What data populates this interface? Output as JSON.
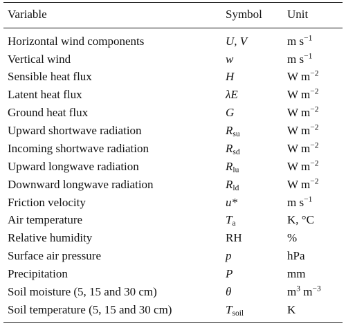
{
  "table": {
    "headers": {
      "variable": "Variable",
      "symbol": "Symbol",
      "unit": "Unit"
    },
    "rows": [
      {
        "variable": "Horizontal wind components",
        "symbol": {
          "main": "U, V",
          "sub": ""
        },
        "unit": {
          "base": "m s",
          "sup": "−1",
          "rest": ""
        }
      },
      {
        "variable": "Vertical wind",
        "symbol": {
          "main": "w",
          "sub": ""
        },
        "unit": {
          "base": "m s",
          "sup": "−1",
          "rest": ""
        }
      },
      {
        "variable": "Sensible heat flux",
        "symbol": {
          "main": "H",
          "sub": ""
        },
        "unit": {
          "base": "W m",
          "sup": "−2",
          "rest": ""
        }
      },
      {
        "variable": "Latent heat flux",
        "symbol": {
          "main": "λE",
          "sub": ""
        },
        "unit": {
          "base": "W m",
          "sup": "−2",
          "rest": ""
        }
      },
      {
        "variable": "Ground heat flux",
        "symbol": {
          "main": "G",
          "sub": ""
        },
        "unit": {
          "base": "W m",
          "sup": "−2",
          "rest": ""
        }
      },
      {
        "variable": "Upward shortwave radiation",
        "symbol": {
          "main": "R",
          "sub": "su"
        },
        "unit": {
          "base": "W m",
          "sup": "−2",
          "rest": ""
        }
      },
      {
        "variable": "Incoming shortwave radiation",
        "symbol": {
          "main": "R",
          "sub": "sd"
        },
        "unit": {
          "base": "W m",
          "sup": "−2",
          "rest": ""
        }
      },
      {
        "variable": "Upward longwave radiation",
        "symbol": {
          "main": "R",
          "sub": "lu"
        },
        "unit": {
          "base": "W m",
          "sup": "−2",
          "rest": ""
        }
      },
      {
        "variable": "Downward longwave radiation",
        "symbol": {
          "main": "R",
          "sub": "ld"
        },
        "unit": {
          "base": "W m",
          "sup": "−2",
          "rest": ""
        }
      },
      {
        "variable": "Friction velocity",
        "symbol": {
          "main": "u*",
          "sub": ""
        },
        "unit": {
          "base": "m s",
          "sup": "−1",
          "rest": ""
        }
      },
      {
        "variable": "Air temperature",
        "symbol": {
          "main": "T",
          "sub": "a"
        },
        "unit": {
          "base": "K, °C",
          "sup": "",
          "rest": ""
        }
      },
      {
        "variable": "Relative humidity",
        "symbol": {
          "main": "RH",
          "sub": ""
        },
        "unit": {
          "base": "%",
          "sup": "",
          "rest": ""
        }
      },
      {
        "variable": "Surface air pressure",
        "symbol": {
          "main": "p",
          "sub": ""
        },
        "unit": {
          "base": "hPa",
          "sup": "",
          "rest": ""
        }
      },
      {
        "variable": "Precipitation",
        "symbol": {
          "main": "P",
          "sub": ""
        },
        "unit": {
          "base": "mm",
          "sup": "",
          "rest": ""
        }
      },
      {
        "variable": "Soil moisture (5, 15 and 30 cm)",
        "symbol": {
          "main": "θ",
          "sub": ""
        },
        "unit": {
          "base": "m",
          "sup": "3",
          "rest": " m",
          "sup2": "−3"
        }
      },
      {
        "variable": "Soil temperature (5, 15 and 30 cm)",
        "symbol": {
          "main": "T",
          "sub": "soil"
        },
        "unit": {
          "base": "K",
          "sup": "",
          "rest": ""
        }
      }
    ]
  }
}
